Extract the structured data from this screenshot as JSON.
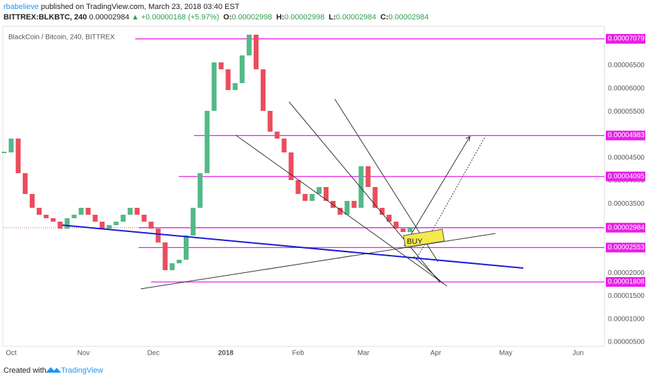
{
  "header": {
    "user": "rbabelieve",
    "published": "published on TradingView.com, March 23, 2018 03:40 EST",
    "symbol": "BITTREX:BLKBTC, 240",
    "price": "0.00002984",
    "change": "▲ +0.00000168 (+5.97%)",
    "ohlc": [
      {
        "k": "O:",
        "v": "0.00002998"
      },
      {
        "k": "H:",
        "v": "0.00002998"
      },
      {
        "k": "L:",
        "v": "0.00002984"
      },
      {
        "k": "C:",
        "v": "0.00002984"
      }
    ]
  },
  "footer": {
    "created": "Created with",
    "brand": "TradingView"
  },
  "chart_data": {
    "type": "candlestick",
    "title": "BlackCoin / Bitcoin, 240, BITTREX",
    "x": [
      -3,
      0,
      3,
      6,
      9,
      12,
      15,
      18,
      21,
      24,
      27,
      30,
      33,
      36,
      39,
      42,
      45,
      48,
      51,
      54,
      57,
      60,
      63,
      66,
      69,
      72,
      75,
      78,
      81,
      84,
      87,
      90,
      93,
      96,
      99,
      102,
      105,
      108,
      111,
      114,
      117,
      120,
      123,
      126,
      129,
      132,
      135,
      138,
      141,
      144,
      147,
      150,
      153,
      156,
      159,
      162,
      165,
      168,
      171
    ],
    "values": [
      4.616e-05,
      4.917e-05,
      4.166e-05,
      3.715e-05,
      3.415e-05,
      3.265e-05,
      3.19e-05,
      3.115e-05,
      2.964e-05,
      3.19e-05,
      3.265e-05,
      3.415e-05,
      3.265e-05,
      3.115e-05,
      2.964e-05,
      3.039e-05,
      3.115e-05,
      3.265e-05,
      3.415e-05,
      3.265e-05,
      3.115e-05,
      2.964e-05,
      2.664e-05,
      2.063e-05,
      2.213e-05,
      2.289e-05,
      2.814e-05,
      3.415e-05,
      4.166e-05,
      5.517e-05,
      6.568e-05,
      6.418e-05,
      5.968e-05,
      6.118e-05,
      6.719e-05,
      7.169e-05,
      6.418e-05,
      5.517e-05,
      5.067e-05,
      4.917e-05,
      4.616e-05,
      4.016e-05,
      3.715e-05,
      3.565e-05,
      3.715e-05,
      3.865e-05,
      3.565e-05,
      3.415e-05,
      3.265e-05,
      3.565e-05,
      3.415e-05,
      4.316e-05,
      3.865e-05,
      3.415e-05,
      3.265e-05,
      3.115e-05,
      2.964e-05,
      2.889e-05,
      2.984e-05
    ],
    "up_color": "#53b987",
    "down_color": "#eb4d5c",
    "xlim": [
      -3.3,
      254.3
    ],
    "xticks": [
      {
        "value": 0,
        "label": "Oct"
      },
      {
        "value": 31,
        "label": "Nov"
      },
      {
        "value": 61,
        "label": "Dec"
      },
      {
        "value": 92,
        "label": "2018"
      },
      {
        "value": 123,
        "label": "Feb"
      },
      {
        "value": 151,
        "label": "Mar"
      },
      {
        "value": 182,
        "label": "Apr"
      },
      {
        "value": 212,
        "label": "May"
      },
      {
        "value": 243,
        "label": "Jun"
      }
    ],
    "ylim": [
      4.11e-06,
      7.35e-05
    ],
    "yticks": [
      {
        "value": 5e-06,
        "label": "0.00000500"
      },
      {
        "value": 1e-05,
        "label": "0.00001000"
      },
      {
        "value": 1.5e-05,
        "label": "0.00001500"
      },
      {
        "value": 2e-05,
        "label": "0.00002000"
      },
      {
        "value": 2.5e-05,
        "label": "0.00002500"
      },
      {
        "value": 3e-05,
        "label": "0.00003000"
      },
      {
        "value": 3.5e-05,
        "label": "0.00003500"
      },
      {
        "value": 4e-05,
        "label": "0.00004000"
      },
      {
        "value": 4.5e-05,
        "label": "0.00004500"
      },
      {
        "value": 5e-05,
        "label": "0.00005000"
      },
      {
        "value": 5.5e-05,
        "label": "0.00005500"
      },
      {
        "value": 6e-05,
        "label": "0.00006000"
      },
      {
        "value": 6.5e-05,
        "label": "0.00006500"
      }
    ],
    "grid": true,
    "hline_color": "#e91ee9",
    "hlines": [
      {
        "value": 7.079e-05,
        "label": "0.00007079"
      },
      {
        "value": 4.983e-05,
        "label": "0.00004983"
      },
      {
        "value": 4.095e-05,
        "label": "0.00004095"
      },
      {
        "value": 2.984e-05,
        "label": "0.00002984"
      },
      {
        "value": 2.553e-05,
        "label": "0.00002553"
      },
      {
        "value": 1.808e-05,
        "label": "0.00001808"
      }
    ],
    "annotations": [
      "BUY"
    ]
  }
}
